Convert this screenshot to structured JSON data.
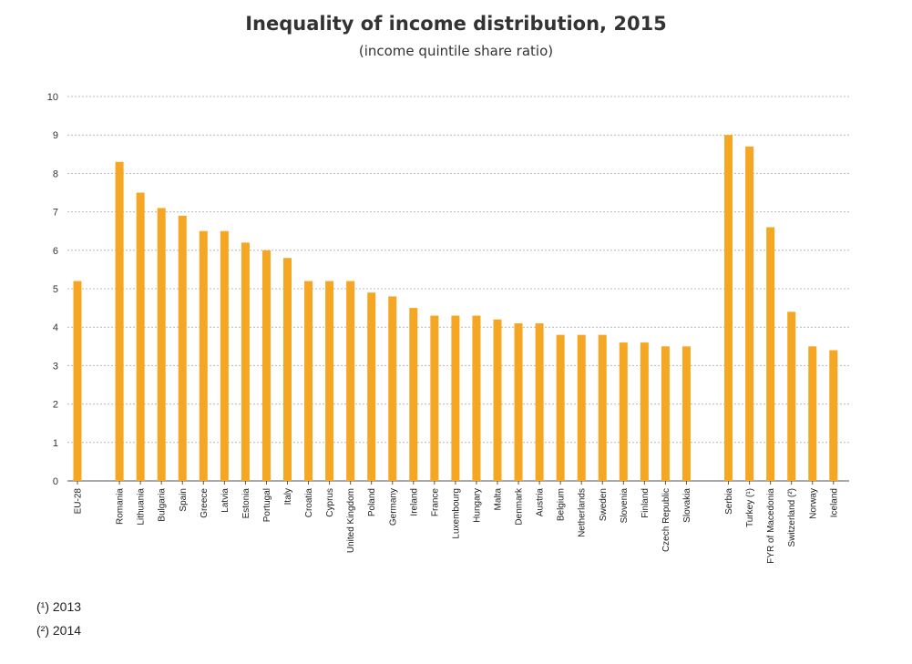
{
  "chart_data": {
    "type": "bar",
    "title": "Inequality  of income distribution,  2015",
    "subtitle": "(income quintile share ratio)",
    "xlabel": "",
    "ylabel": "",
    "ylim": [
      0,
      10
    ],
    "yticks": [
      0,
      1,
      2,
      3,
      4,
      5,
      6,
      7,
      8,
      9,
      10
    ],
    "grid": true,
    "legend": "none",
    "bar_color": "#F5A623",
    "categories": [
      "EU-28",
      "Romania",
      "Lithuania",
      "Bulgaria",
      "Spain",
      "Greece",
      "Latvia",
      "Estonia",
      "Portugal",
      "Italy",
      "Croatia",
      "Cyprus",
      "United Kingdom",
      "Poland",
      "Germany",
      "Ireland",
      "France",
      "Luxembourg",
      "Hungary",
      "Malta",
      "Denmark",
      "Austria",
      "Belgium",
      "Netherlands",
      "Sweden",
      "Slovenia",
      "Finland",
      "Czech Republic",
      "Slovakia",
      "Serbia",
      "Turkey (¹)",
      "FYR of Macedonia",
      "Switzerland (²)",
      "Norway",
      "Iceland"
    ],
    "values": [
      5.2,
      8.3,
      7.5,
      7.1,
      6.9,
      6.5,
      6.5,
      6.2,
      6.0,
      5.8,
      5.2,
      5.2,
      5.2,
      4.9,
      4.8,
      4.5,
      4.3,
      4.3,
      4.3,
      4.2,
      4.1,
      4.1,
      3.8,
      3.8,
      3.8,
      3.6,
      3.6,
      3.5,
      3.5,
      9.0,
      8.7,
      6.6,
      4.4,
      3.5,
      3.4
    ]
  },
  "footnotes": [
    "(¹) 2013",
    "(²) 2014"
  ]
}
